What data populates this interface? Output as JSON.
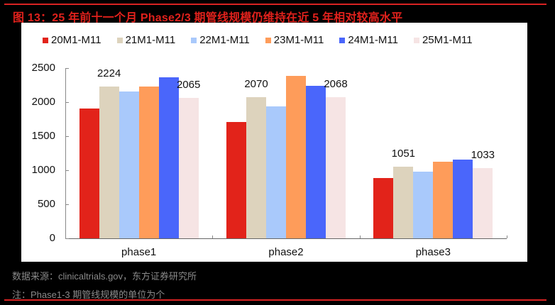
{
  "figure": {
    "title": "图 13：25 年前十一个月 Phase2/3 期管线规模仍维持在近 5 年相对较高水平",
    "source": "数据来源：clinicaltrials.gov，东方证券研究所",
    "note": "注：Phase1-3 期管线规模的单位为个"
  },
  "legend": [
    {
      "label": "20M1-M11",
      "color": "#e2231a"
    },
    {
      "label": "21M1-M11",
      "color": "#ddd3bd"
    },
    {
      "label": "22M1-M11",
      "color": "#a9c9fb"
    },
    {
      "label": "23M1-M11",
      "color": "#fe9c5a"
    },
    {
      "label": "24M1-M11",
      "color": "#4a66fb"
    },
    {
      "label": "25M1-M11",
      "color": "#f6e4e4"
    }
  ],
  "axis": {
    "y_ticks": [
      "0",
      "500",
      "1000",
      "1500",
      "2000",
      "2500"
    ],
    "x_labels": [
      "phase1",
      "phase2",
      "phase3"
    ]
  },
  "data_labels": {
    "phase1": {
      "left": "2224",
      "right": "2065"
    },
    "phase2": {
      "left": "2070",
      "right": "2068"
    },
    "phase3": {
      "left": "1051",
      "right": "1033"
    }
  },
  "chart_data": {
    "type": "bar",
    "title": "图 13：25 年前十一个月 Phase2/3 期管线规模仍维持在近 5 年相对较高水平",
    "categories": [
      "phase1",
      "phase2",
      "phase3"
    ],
    "series": [
      {
        "name": "20M1-M11",
        "color": "#e2231a",
        "values": [
          1906,
          1708,
          885
        ]
      },
      {
        "name": "21M1-M11",
        "color": "#ddd3bd",
        "values": [
          2224,
          2070,
          1051
        ]
      },
      {
        "name": "22M1-M11",
        "color": "#a9c9fb",
        "values": [
          2156,
          1938,
          979
        ]
      },
      {
        "name": "23M1-M11",
        "color": "#fe9c5a",
        "values": [
          2229,
          2385,
          1125
        ]
      },
      {
        "name": "24M1-M11",
        "color": "#4a66fb",
        "values": [
          2365,
          2240,
          1156
        ]
      },
      {
        "name": "25M1-M11",
        "color": "#f6e4e4",
        "values": [
          2065,
          2068,
          1033
        ]
      }
    ],
    "annotations": [
      {
        "category": "phase1",
        "series": "21M1-M11",
        "text": "2224"
      },
      {
        "category": "phase1",
        "series": "25M1-M11",
        "text": "2065"
      },
      {
        "category": "phase2",
        "series": "21M1-M11",
        "text": "2070"
      },
      {
        "category": "phase2",
        "series": "25M1-M11",
        "text": "2068"
      },
      {
        "category": "phase3",
        "series": "21M1-M11",
        "text": "1051"
      },
      {
        "category": "phase3",
        "series": "25M1-M11",
        "text": "1033"
      }
    ],
    "xlabel": "",
    "ylabel": "",
    "ylim": [
      0,
      2500
    ],
    "yticks": [
      0,
      500,
      1000,
      1500,
      2000,
      2500
    ],
    "grid": false,
    "legend_position": "top",
    "source": "数据来源：clinicaltrials.gov，东方证券研究所",
    "note": "注：Phase1-3 期管线规模的单位为个"
  }
}
